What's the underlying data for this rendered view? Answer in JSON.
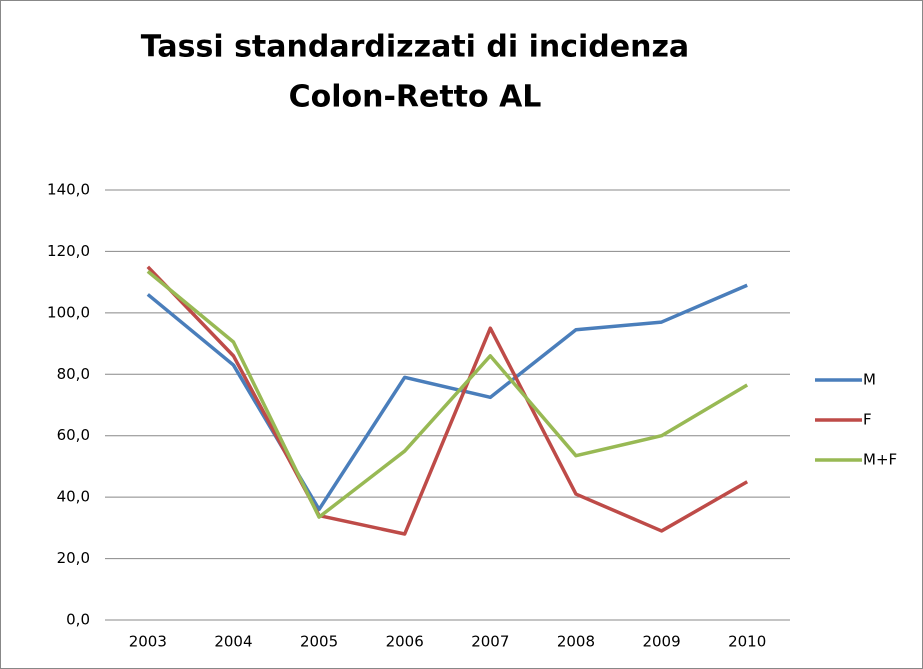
{
  "chart_data": {
    "type": "line",
    "title": [
      "Tassi standardizzati di incidenza",
      "Colon-Retto AL"
    ],
    "categories": [
      "2003",
      "2004",
      "2005",
      "2006",
      "2007",
      "2008",
      "2009",
      "2010"
    ],
    "series": [
      {
        "name": "M",
        "color": "#4a7ebb",
        "values": [
          106,
          83,
          36,
          79,
          72.5,
          94.5,
          97,
          109
        ]
      },
      {
        "name": "F",
        "color": "#be4b48",
        "values": [
          115,
          86,
          34,
          28,
          95,
          41,
          29,
          45
        ]
      },
      {
        "name": "M+F",
        "color": "#98b954",
        "values": [
          113.5,
          90.5,
          33.5,
          55,
          86,
          53.5,
          60,
          76.5
        ]
      }
    ],
    "ylim": [
      0,
      140
    ],
    "yticks": [
      {
        "value": 0,
        "label": "0,0"
      },
      {
        "value": 20,
        "label": "20,0"
      },
      {
        "value": 40,
        "label": "40,0"
      },
      {
        "value": 60,
        "label": "60,0"
      },
      {
        "value": 80,
        "label": "80,0"
      },
      {
        "value": 100,
        "label": "100,0"
      },
      {
        "value": 120,
        "label": "120,0"
      },
      {
        "value": 140,
        "label": "140,0"
      }
    ],
    "grid": true,
    "legend": "right"
  }
}
